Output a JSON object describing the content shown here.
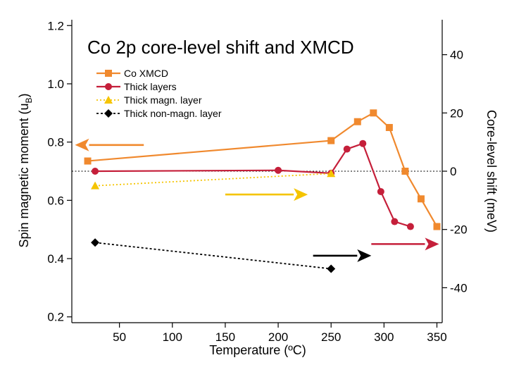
{
  "chart_data": {
    "type": "line",
    "title": "Co 2p core-level shift and XMCD",
    "xlabel": "Temperature (ºC)",
    "ylabel": "Spin magnetic moment (u",
    "ylabel_sub": "B",
    "ylabel_close": ")",
    "y2label": "Core-level shift (meV)",
    "xlim": [
      5,
      355
    ],
    "ylim": [
      0.18,
      1.22
    ],
    "y2lim": [
      -52,
      52
    ],
    "xticks": [
      50,
      100,
      150,
      200,
      250,
      300,
      350
    ],
    "yticks": [
      0.2,
      0.4,
      0.6,
      0.8,
      1.0,
      1.2
    ],
    "yticklabels": [
      "0.2",
      "0.4",
      "0.6",
      "0.8",
      "1.0",
      "1.2"
    ],
    "y2ticks": [
      -40,
      -20,
      0,
      20,
      40
    ],
    "y2ticklabels": [
      "-40",
      "-20",
      "0",
      "20",
      "40"
    ],
    "zero_line_y2": 0,
    "grid": false,
    "legend_position": "top-left",
    "series": [
      {
        "name": "Co XMCD",
        "axis": "left",
        "color": "#F0892E",
        "marker": "square",
        "line": "solid",
        "x": [
          20,
          250,
          275,
          290,
          305,
          320,
          335,
          350
        ],
        "y": [
          0.735,
          0.805,
          0.87,
          0.9,
          0.85,
          0.7,
          0.605,
          0.51
        ]
      },
      {
        "name": "Thick layers",
        "axis": "right",
        "color": "#C51F3A",
        "marker": "circle",
        "line": "solid",
        "x": [
          27,
          200,
          250,
          265,
          280,
          297,
          310,
          325
        ],
        "y": [
          0,
          0.3,
          -0.7,
          7.6,
          9.5,
          -7,
          -17.3,
          -19
        ]
      },
      {
        "name": "Thick magn. layer",
        "axis": "right",
        "color": "#F5C400",
        "marker": "triangle",
        "line": "dotted",
        "x": [
          27,
          250
        ],
        "y": [
          -5,
          -0.8
        ]
      },
      {
        "name": "Thick non-magn. layer",
        "axis": "right",
        "color": "#000000",
        "marker": "diamond",
        "line": "dashed",
        "x": [
          27,
          250
        ],
        "y": [
          -24.5,
          -33.5
        ]
      }
    ],
    "annotations": [
      {
        "kind": "arrow",
        "axis": "left",
        "color": "#F0892E",
        "from": [
          73,
          0.79
        ],
        "to": [
          8,
          0.79
        ]
      },
      {
        "kind": "arrow",
        "axis": "right",
        "color": "#F5C400",
        "from": [
          150,
          -8
        ],
        "to": [
          228,
          -8
        ]
      },
      {
        "kind": "arrow",
        "axis": "right",
        "color": "#000000",
        "from": [
          233,
          -29
        ],
        "to": [
          288,
          -29
        ]
      },
      {
        "kind": "arrow",
        "axis": "right",
        "color": "#C51F3A",
        "from": [
          288,
          -25
        ],
        "to": [
          352,
          -25
        ]
      }
    ]
  }
}
